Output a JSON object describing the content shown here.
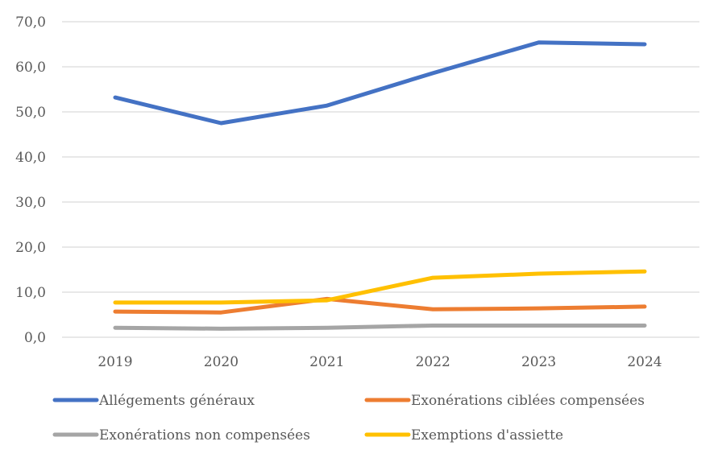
{
  "chart_data": {
    "type": "line",
    "title": "",
    "xlabel": "",
    "ylabel": "",
    "categories": [
      "2019",
      "2020",
      "2021",
      "2022",
      "2023",
      "2024"
    ],
    "ylim": [
      0,
      70
    ],
    "yticks": [
      "0,0",
      "10,0",
      "20,0",
      "30,0",
      "40,0",
      "50,0",
      "60,0",
      "70,0"
    ],
    "ytick_values": [
      0,
      10,
      20,
      30,
      40,
      50,
      60,
      70
    ],
    "grid": true,
    "legend_position": "bottom",
    "series": [
      {
        "name": "Allégements généraux",
        "color": "#4472C4",
        "values": [
          53.2,
          47.5,
          51.4,
          58.6,
          65.4,
          65.0
        ]
      },
      {
        "name": "Exonérations ciblées compensées",
        "color": "#ED7D31",
        "values": [
          5.7,
          5.5,
          8.5,
          6.2,
          6.4,
          6.8
        ]
      },
      {
        "name": "Exonérations non compensées",
        "color": "#A5A5A5",
        "values": [
          2.1,
          1.9,
          2.1,
          2.6,
          2.6,
          2.6
        ]
      },
      {
        "name": "Exemptions d'assiette",
        "color": "#FFC000",
        "values": [
          7.7,
          7.7,
          8.2,
          13.2,
          14.1,
          14.6
        ]
      }
    ]
  }
}
